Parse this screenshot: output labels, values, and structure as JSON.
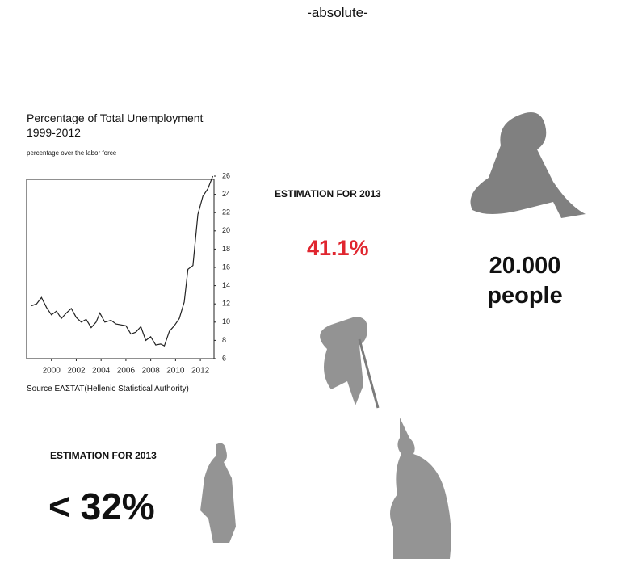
{
  "header": {
    "title": "-absolute-"
  },
  "chart_data": {
    "type": "line",
    "title": "Percentage of Total Unemployment 1999-2012",
    "subtitle": "percentage over the labor force",
    "source": "Source ΕΛΣΤΑΤ(Hellenic Statistical Authority)",
    "x": [
      1998.4,
      1998.8,
      1999.2,
      1999.6,
      2000.0,
      2000.4,
      2000.8,
      2001.2,
      2001.6,
      2002.0,
      2002.4,
      2002.8,
      2003.2,
      2003.6,
      2003.9,
      2004.3,
      2004.8,
      2005.2,
      2005.6,
      2006.0,
      2006.4,
      2006.8,
      2007.2,
      2007.6,
      2008.0,
      2008.4,
      2008.8,
      2009.1,
      2009.5,
      2009.9,
      2010.3,
      2010.7,
      2011.0,
      2011.4,
      2011.8,
      2012.2,
      2012.6,
      2013.0
    ],
    "values": [
      11.8,
      12.0,
      12.7,
      11.6,
      10.8,
      11.2,
      10.4,
      11.0,
      11.5,
      10.5,
      10.0,
      10.3,
      9.4,
      10.0,
      11.0,
      10.0,
      10.2,
      9.8,
      9.7,
      9.6,
      8.7,
      8.9,
      9.5,
      8.0,
      8.4,
      7.5,
      7.6,
      7.4,
      9.0,
      9.6,
      10.4,
      12.2,
      15.8,
      16.2,
      21.8,
      23.8,
      24.6,
      26.0
    ],
    "color": "#222222",
    "xlim": [
      1998,
      2013.1
    ],
    "xticks": [
      2000,
      2002,
      2004,
      2006,
      2008,
      2010,
      2012
    ],
    "ylim": [
      6,
      26
    ],
    "yticks": [
      6,
      8,
      10,
      12,
      14,
      16,
      18,
      20,
      22,
      24,
      26
    ]
  },
  "estimate_a": {
    "heading": "ESTIMATION FOR 2013",
    "value": "41.1%"
  },
  "people": {
    "lines": [
      "20.000",
      "people"
    ]
  },
  "estimate_b": {
    "heading": "ESTIMATION FOR 2013",
    "value": "< 32%"
  }
}
